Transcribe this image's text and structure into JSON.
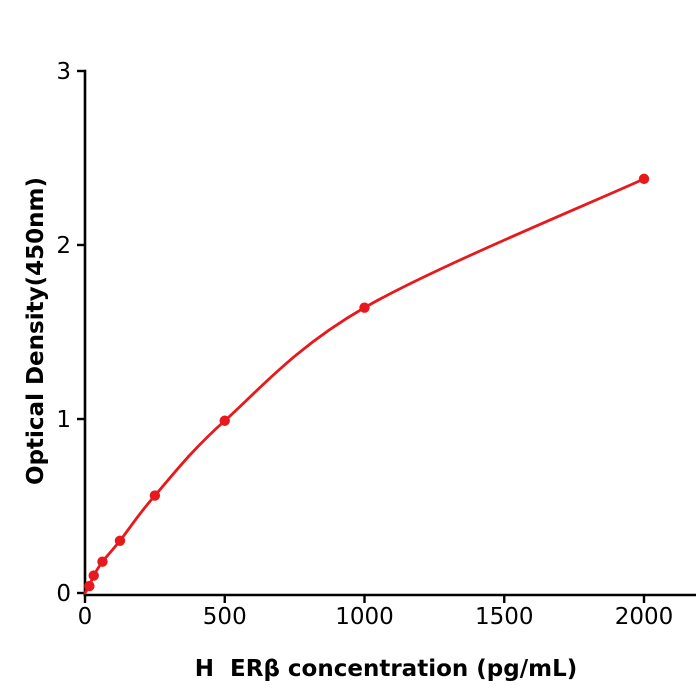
{
  "figure": {
    "background_color": "#ffffff",
    "axis_color": "#000000",
    "text_color": "#000000"
  },
  "chart_data": {
    "type": "line",
    "title": "",
    "xlabel": "H  ERβ concentration (pg/mL)",
    "ylabel": "Optical Density(450nm)",
    "series_name": "standard-curve",
    "series_color": "#e8191c",
    "marker": "circle",
    "grid": false,
    "xlim": [
      0,
      2000
    ],
    "ylim": [
      0,
      3
    ],
    "x_ticks": [
      0,
      500,
      1000,
      1500,
      2000
    ],
    "x_tick_labels": [
      "0",
      "500",
      "1000",
      "1500",
      "2000"
    ],
    "y_ticks": [
      0,
      1,
      2,
      3
    ],
    "y_tick_labels": [
      "0",
      "1",
      "2",
      "3"
    ],
    "curve_start": {
      "x": 0,
      "y": 0
    },
    "points": [
      {
        "x": 15.6,
        "y": 0.04
      },
      {
        "x": 31.25,
        "y": 0.1
      },
      {
        "x": 62.5,
        "y": 0.18
      },
      {
        "x": 125,
        "y": 0.3
      },
      {
        "x": 250,
        "y": 0.56
      },
      {
        "x": 500,
        "y": 0.99
      },
      {
        "x": 1000,
        "y": 1.64
      },
      {
        "x": 2000,
        "y": 2.38
      }
    ]
  }
}
